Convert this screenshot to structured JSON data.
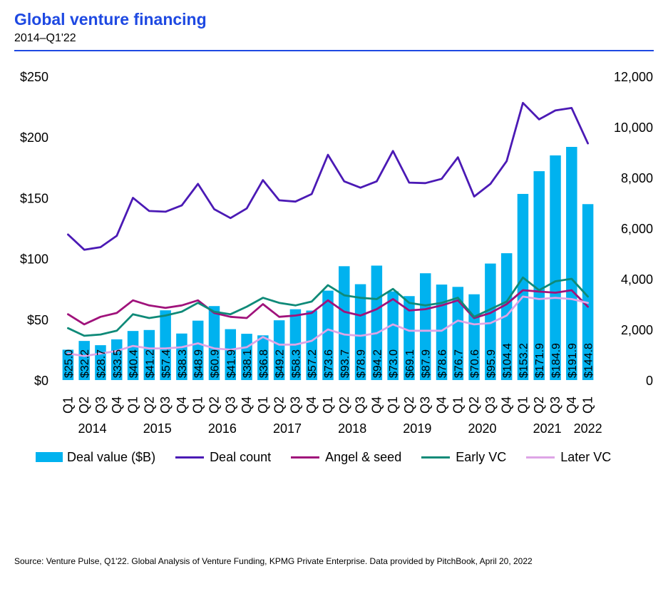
{
  "header": {
    "title": "Global venture financing",
    "subtitle": "2014–Q1'22"
  },
  "source": "Source: Venture Pulse, Q1'22. Global Analysis of Venture Funding, KPMG Private Enterprise. Data provided by PitchBook, April 20, 2022",
  "colors": {
    "accent": "#1e49e2",
    "bar": "#00b2ef",
    "deal_count": "#4b1ab5",
    "angel_seed": "#a0127b",
    "early_vc": "#0f8a78",
    "later_vc": "#dea5e6"
  },
  "legend": [
    {
      "label": "Deal value ($B)",
      "kind": "bar",
      "color": "#00b2ef"
    },
    {
      "label": "Deal count",
      "kind": "line",
      "color": "#4b1ab5"
    },
    {
      "label": "Angel & seed",
      "kind": "line",
      "color": "#a0127b"
    },
    {
      "label": "Early VC",
      "kind": "line",
      "color": "#0f8a78"
    },
    {
      "label": "Later VC",
      "kind": "line",
      "color": "#dea5e6"
    }
  ],
  "chart_data": {
    "type": "bar",
    "title": "Global venture financing",
    "subtitle": "2014–Q1'22",
    "categories": [
      "Q1",
      "Q2",
      "Q3",
      "Q4",
      "Q1",
      "Q2",
      "Q3",
      "Q4",
      "Q1",
      "Q2",
      "Q3",
      "Q4",
      "Q1",
      "Q2",
      "Q3",
      "Q4",
      "Q1",
      "Q2",
      "Q3",
      "Q4",
      "Q1",
      "Q2",
      "Q3",
      "Q4",
      "Q1",
      "Q2",
      "Q3",
      "Q4",
      "Q1",
      "Q2",
      "Q3",
      "Q4",
      "Q1"
    ],
    "years": [
      {
        "label": "2014",
        "start": 0,
        "count": 4
      },
      {
        "label": "2015",
        "start": 4,
        "count": 4
      },
      {
        "label": "2016",
        "start": 8,
        "count": 4
      },
      {
        "label": "2017",
        "start": 12,
        "count": 4
      },
      {
        "label": "2018",
        "start": 16,
        "count": 4
      },
      {
        "label": "2019",
        "start": 20,
        "count": 4
      },
      {
        "label": "2020",
        "start": 24,
        "count": 4
      },
      {
        "label": "2021",
        "start": 28,
        "count": 4
      },
      {
        "label": "2022",
        "start": 32,
        "count": 1
      }
    ],
    "y_left": {
      "min": 0,
      "max": 250,
      "ticks": [
        0,
        50,
        100,
        150,
        200,
        250
      ],
      "tick_labels": [
        "$0",
        "$50",
        "$100",
        "$150",
        "$200",
        "$250"
      ]
    },
    "y_right": {
      "min": 0,
      "max": 12000,
      "ticks": [
        0,
        2000,
        4000,
        6000,
        8000,
        10000,
        12000
      ],
      "tick_labels": [
        "0",
        "2,000",
        "4,000",
        "6,000",
        "8,000",
        "10,000",
        "12,000"
      ]
    },
    "bars": {
      "name": "Deal value ($B)",
      "axis": "left",
      "values": [
        25.0,
        32.2,
        28.7,
        33.5,
        40.4,
        41.2,
        57.4,
        38.3,
        48.9,
        60.9,
        41.9,
        38.1,
        36.8,
        49.2,
        58.3,
        57.2,
        73.6,
        93.7,
        78.9,
        94.2,
        73.0,
        69.1,
        87.9,
        78.6,
        76.7,
        70.6,
        95.9,
        104.4,
        153.2,
        171.9,
        184.9,
        191.9,
        144.8
      ],
      "labels": [
        "$25.0",
        "$32.2",
        "$28.7",
        "$33.5",
        "$40.4",
        "$41.2",
        "$57.4",
        "$38.3",
        "$48.9",
        "$60.9",
        "$41.9",
        "$38.1",
        "$36.8",
        "$49.2",
        "$58.3",
        "$57.2",
        "$73.6",
        "$93.7",
        "$78.9",
        "$94.2",
        "$73.0",
        "$69.1",
        "$87.9",
        "$78.6",
        "$76.7",
        "$70.6",
        "$95.9",
        "$104.4",
        "$153.2",
        "$171.9",
        "$184.9",
        "$191.9",
        "$144.8"
      ]
    },
    "series": [
      {
        "name": "Deal count",
        "axis": "right",
        "values": [
          5750,
          5150,
          5250,
          5700,
          7200,
          6680,
          6650,
          6900,
          7750,
          6750,
          6400,
          6780,
          7900,
          7100,
          7050,
          7350,
          8900,
          7850,
          7600,
          7850,
          9050,
          7800,
          7780,
          7950,
          8800,
          7250,
          7750,
          8650,
          10950,
          10300,
          10650,
          10750,
          9350
        ]
      },
      {
        "name": "Angel & seed",
        "axis": "right",
        "values": [
          2600,
          2200,
          2500,
          2650,
          3150,
          2950,
          2850,
          2950,
          3150,
          2650,
          2500,
          2450,
          3000,
          2500,
          2550,
          2650,
          3150,
          2700,
          2550,
          2800,
          3200,
          2750,
          2800,
          2950,
          3150,
          2450,
          2650,
          3000,
          3550,
          3500,
          3450,
          3550,
          2900
        ]
      },
      {
        "name": "Early VC",
        "axis": "right",
        "values": [
          2050,
          1750,
          1800,
          1950,
          2600,
          2450,
          2550,
          2700,
          3050,
          2700,
          2600,
          2900,
          3250,
          3050,
          2950,
          3100,
          3750,
          3350,
          3250,
          3200,
          3600,
          3050,
          2950,
          3050,
          3250,
          2500,
          2800,
          3100,
          4050,
          3550,
          3900,
          4000,
          3300
        ]
      },
      {
        "name": "Later VC",
        "axis": "right",
        "values": [
          1050,
          950,
          1050,
          1150,
          1350,
          1250,
          1250,
          1300,
          1450,
          1250,
          1200,
          1300,
          1700,
          1400,
          1400,
          1550,
          2000,
          1800,
          1750,
          1850,
          2200,
          1950,
          1950,
          1950,
          2350,
          2200,
          2250,
          2550,
          3300,
          3200,
          3250,
          3200,
          3050
        ]
      }
    ],
    "grid": false,
    "legend_position": "bottom"
  }
}
